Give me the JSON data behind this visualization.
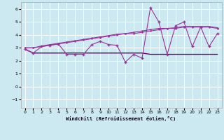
{
  "xlabel": "Windchill (Refroidissement éolien,°C)",
  "bg_color": "#cce8f0",
  "grid_color": "#ffffff",
  "line_color": "#993399",
  "xlim": [
    -0.5,
    23.5
  ],
  "ylim": [
    -1.6,
    6.5
  ],
  "xticks": [
    0,
    1,
    2,
    3,
    4,
    5,
    6,
    7,
    8,
    9,
    10,
    11,
    12,
    13,
    14,
    15,
    16,
    17,
    18,
    19,
    20,
    21,
    22,
    23
  ],
  "yticks": [
    -1,
    0,
    1,
    2,
    3,
    4,
    5,
    6
  ],
  "line1_x": [
    0,
    1,
    2,
    3,
    4,
    5,
    6,
    7,
    8,
    9,
    10,
    11,
    12,
    13,
    14,
    15,
    16,
    17,
    18,
    19,
    20,
    21,
    22,
    23
  ],
  "line1_y": [
    2.9,
    2.6,
    2.6,
    2.6,
    2.6,
    2.6,
    2.6,
    2.6,
    2.6,
    2.6,
    2.6,
    2.6,
    2.6,
    2.6,
    2.6,
    2.5,
    2.5,
    2.5,
    2.5,
    2.5,
    2.5,
    2.5,
    2.5,
    2.5
  ],
  "line2_x": [
    0,
    1,
    2,
    3,
    4,
    5,
    6,
    7,
    8,
    9,
    10,
    11,
    12,
    13,
    14,
    15,
    16,
    17,
    18,
    19,
    20,
    21,
    22,
    23
  ],
  "line2_y": [
    3.0,
    3.0,
    3.1,
    3.2,
    3.3,
    3.4,
    3.5,
    3.6,
    3.7,
    3.8,
    3.9,
    4.0,
    4.1,
    4.1,
    4.2,
    4.3,
    4.4,
    4.5,
    4.5,
    4.6,
    4.6,
    4.6,
    4.6,
    4.5
  ],
  "line3_x": [
    0,
    1,
    2,
    3,
    4,
    5,
    6,
    7,
    8,
    9,
    10,
    11,
    12,
    13,
    14,
    15,
    16,
    17,
    18,
    19,
    20,
    21,
    22,
    23
  ],
  "line3_y": [
    3.0,
    3.0,
    3.15,
    3.25,
    3.35,
    3.45,
    3.55,
    3.65,
    3.75,
    3.85,
    3.95,
    4.05,
    4.1,
    4.2,
    4.3,
    4.4,
    4.5,
    4.5,
    4.55,
    4.65,
    4.65,
    4.65,
    4.65,
    4.55
  ],
  "line4_x": [
    0,
    1,
    2,
    3,
    4,
    5,
    6,
    7,
    8,
    9,
    10,
    11,
    12,
    13,
    14,
    15,
    16,
    17,
    18,
    19,
    20,
    21,
    22,
    23
  ],
  "line4_y": [
    2.9,
    2.6,
    3.1,
    3.2,
    3.3,
    2.5,
    2.5,
    2.5,
    3.25,
    3.5,
    3.25,
    3.2,
    1.9,
    2.5,
    2.2,
    6.1,
    5.0,
    2.5,
    4.7,
    5.0,
    3.1,
    4.6,
    3.1,
    4.1
  ]
}
